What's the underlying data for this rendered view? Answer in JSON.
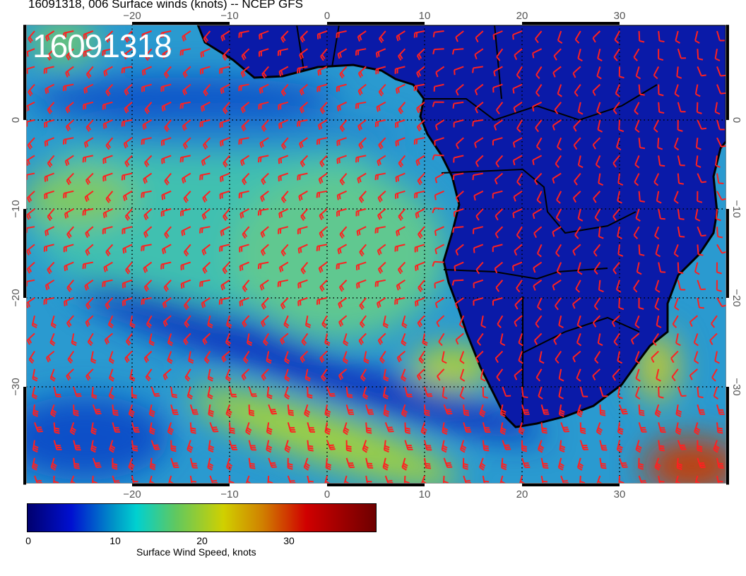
{
  "title": "16091318, 006 Surface winds (knots) -- NCEP GFS",
  "date_stamp": "16091318",
  "map": {
    "region": "South Atlantic / Southern Africa",
    "lon_range": [
      -31,
      41
    ],
    "lat_range": [
      -41,
      10.7
    ],
    "lon_ticks": [
      "−20",
      "−10",
      "0",
      "10",
      "20",
      "30"
    ],
    "lat_ticks": [
      "0",
      "−10",
      "−20",
      "−30"
    ],
    "gridlines": "dotted",
    "land_color": "#0a1aa8",
    "barb_color": "#ff2020",
    "coast_color": "#000000"
  },
  "colorbar": {
    "title": "Surface Wind Speed, knots",
    "labels": [
      "0",
      "10",
      "20",
      "30"
    ],
    "range": [
      0,
      40
    ],
    "stops": [
      [
        0,
        "#00006e"
      ],
      [
        5,
        "#0010d0"
      ],
      [
        10,
        "#0096c8"
      ],
      [
        12.5,
        "#00d0d0"
      ],
      [
        17,
        "#60c860"
      ],
      [
        22.5,
        "#d0d000"
      ],
      [
        27,
        "#d08000"
      ],
      [
        32,
        "#d00000"
      ],
      [
        40,
        "#6e0000"
      ]
    ]
  }
}
